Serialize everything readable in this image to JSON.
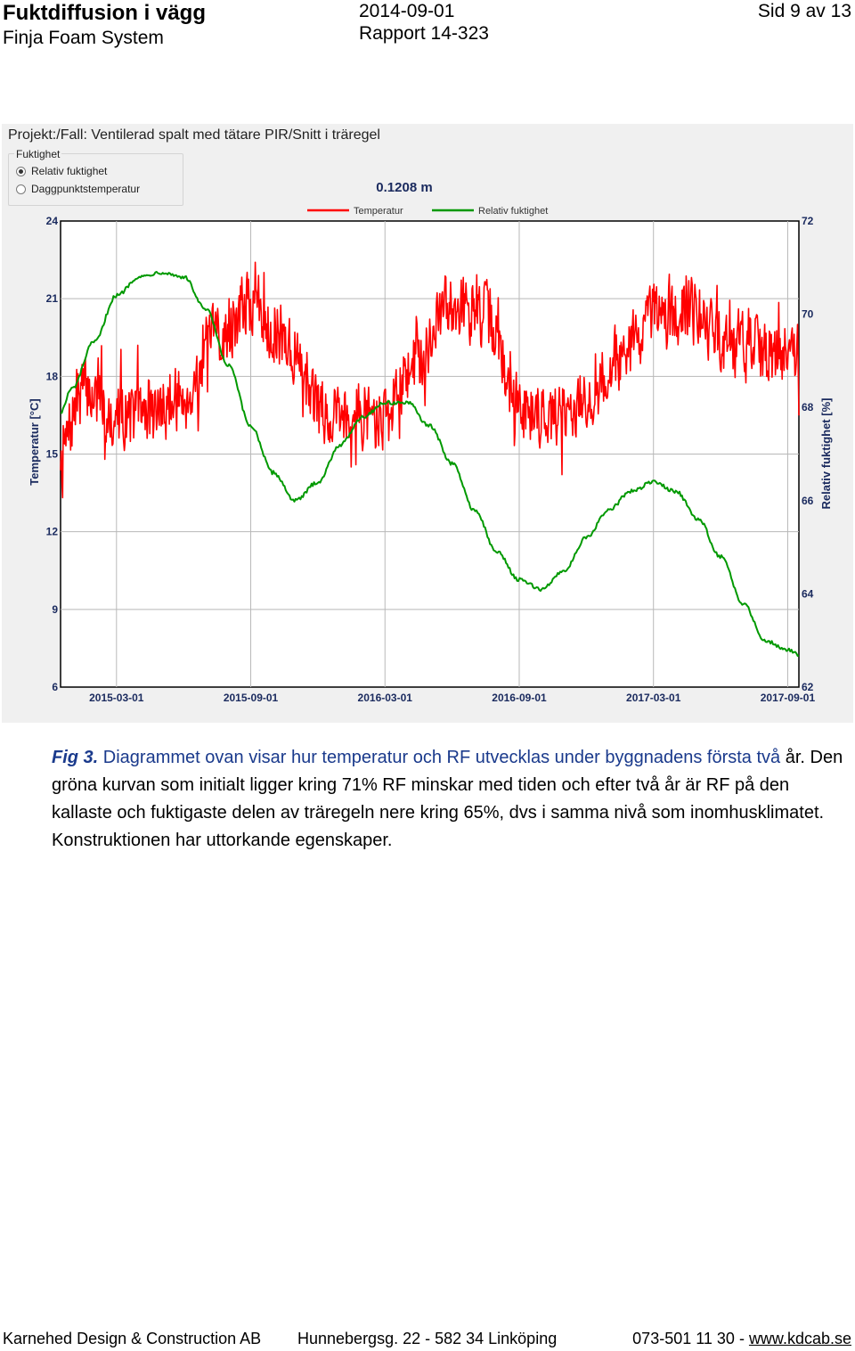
{
  "header": {
    "title": "Fuktdiffusion i vägg",
    "subtitle": "Finja Foam System",
    "date": "2014-09-01",
    "report": "Rapport 14-323",
    "page": "Sid 9 av 13"
  },
  "app": {
    "project_label": "Projekt:/Fall:  Ventilerad spalt med tätare PIR/Snitt i träregel",
    "group_label": "Fuktighet",
    "options": [
      {
        "label": "Relativ fuktighet",
        "selected": true
      },
      {
        "label": "Daggpunktstemperatur",
        "selected": false
      }
    ]
  },
  "chart_data": {
    "type": "line",
    "title": "0.1208 m",
    "x_tick_labels": [
      "2015-03-01",
      "2015-09-01",
      "2016-03-01",
      "2016-09-01",
      "2017-03-01",
      "2017-09-01"
    ],
    "x_range_months": [
      -2.5,
      30.5
    ],
    "y_left": {
      "label": "Temperatur [°C]",
      "range": [
        6,
        24
      ],
      "ticks": [
        6,
        9,
        12,
        15,
        18,
        21,
        24
      ]
    },
    "y_right": {
      "label": "Relativ fuktighet [%]",
      "range": [
        62,
        72
      ],
      "ticks": [
        62,
        64,
        66,
        68,
        70,
        72
      ]
    },
    "grid": true,
    "legend_position": "top-center",
    "series": [
      {
        "name": "Temperatur",
        "axis": "left",
        "color": "#ff0000",
        "noise_amplitude": 1.2,
        "x": [
          -2.5,
          -1.5,
          0,
          1.5,
          3,
          4.5,
          6,
          7.5,
          9,
          10.5,
          12,
          13.5,
          15,
          16.5,
          18,
          19.5,
          21,
          22.5,
          24,
          25.5,
          27,
          28.5,
          30,
          30.5
        ],
        "y": [
          15,
          17.5,
          16.5,
          16.6,
          17.2,
          19.5,
          20.8,
          19.5,
          16.8,
          16.6,
          16.5,
          18.6,
          20.9,
          20.3,
          16.8,
          16.5,
          17.0,
          18.8,
          20.2,
          20.5,
          19.5,
          19.0,
          19.0,
          18.8
        ]
      },
      {
        "name": "Relativ fuktighet",
        "axis": "right",
        "color": "#009900",
        "noise_amplitude": 0.04,
        "x": [
          -2.5,
          -2,
          -1,
          0,
          1,
          2,
          3,
          4,
          5,
          6,
          7,
          8,
          9,
          10,
          11,
          12,
          13,
          14,
          15,
          16,
          17,
          18,
          19,
          20,
          21,
          22,
          23,
          24,
          25,
          26,
          27,
          28,
          29,
          30,
          30.5
        ],
        "y": [
          67.9,
          68.4,
          69.4,
          70.4,
          70.8,
          70.9,
          70.8,
          70.1,
          68.9,
          67.6,
          66.6,
          66.0,
          66.4,
          67.2,
          67.8,
          68.1,
          68.1,
          67.6,
          66.8,
          65.8,
          64.9,
          64.3,
          64.1,
          64.5,
          65.2,
          65.8,
          66.2,
          66.4,
          66.2,
          65.6,
          64.8,
          63.8,
          63.0,
          62.8,
          62.7
        ]
      }
    ]
  },
  "caption": {
    "fig_label": "Fig 3.",
    "fig_text": " Diagrammet ovan visar hur temperatur och RF utvecklas under byggnadens första två",
    "body": "år. Den gröna kurvan som initialt ligger kring 71% RF minskar med tiden och efter två år är RF på den kallaste och fuktigaste delen av träregeln nere kring 65%, dvs i samma nivå som inomhusklimatet. Konstruktionen har uttorkande egenskaper."
  },
  "footer": {
    "company": "Karnehed Design & Construction AB",
    "address": "Hunnebergsg. 22 - 582 34 Linköping",
    "phone": "073-501 11 30 - ",
    "website": "www.kdcab.se"
  }
}
